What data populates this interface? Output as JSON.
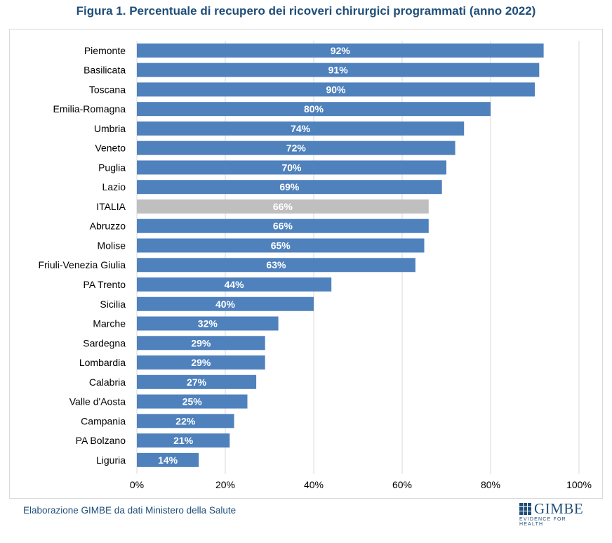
{
  "title": "Figura 1. Percentuale di recupero dei ricoveri chirurgici programmati (anno 2022)",
  "source": "Elaborazione GIMBE da dati Ministero della Salute",
  "logo": {
    "name": "GIMBE",
    "tagline": "EVIDENCE FOR HEALTH"
  },
  "colors": {
    "bar": "#4f81bd",
    "highlight": "#bfbfbf",
    "text": "#1f4e79",
    "grid": "#d9d9d9"
  },
  "chart_data": {
    "type": "bar",
    "orientation": "horizontal",
    "title": "Figura 1. Percentuale di recupero dei ricoveri chirurgici programmati (anno 2022)",
    "xlabel": "",
    "ylabel": "",
    "xlim": [
      0,
      100
    ],
    "xticks": [
      "0%",
      "20%",
      "40%",
      "60%",
      "80%",
      "100%"
    ],
    "xtick_values": [
      0,
      20,
      40,
      60,
      80,
      100
    ],
    "grid": true,
    "categories": [
      "Piemonte",
      "Basilicata",
      "Toscana",
      "Emilia-Romagna",
      "Umbria",
      "Veneto",
      "Puglia",
      "Lazio",
      "ITALIA",
      "Abruzzo",
      "Molise",
      "Friuli-Venezia Giulia",
      "PA Trento",
      "Sicilia",
      "Marche",
      "Sardegna",
      "Lombardia",
      "Calabria",
      "Valle d'Aosta",
      "Campania",
      "PA Bolzano",
      "Liguria"
    ],
    "values": [
      92,
      91,
      90,
      80,
      74,
      72,
      70,
      69,
      66,
      66,
      65,
      63,
      44,
      40,
      32,
      29,
      29,
      27,
      25,
      22,
      21,
      14
    ],
    "data_labels": [
      "92%",
      "91%",
      "90%",
      "80%",
      "74%",
      "72%",
      "70%",
      "69%",
      "66%",
      "66%",
      "65%",
      "63%",
      "44%",
      "40%",
      "32%",
      "29%",
      "29%",
      "27%",
      "25%",
      "22%",
      "21%",
      "14%"
    ],
    "highlight_category": "ITALIA"
  }
}
